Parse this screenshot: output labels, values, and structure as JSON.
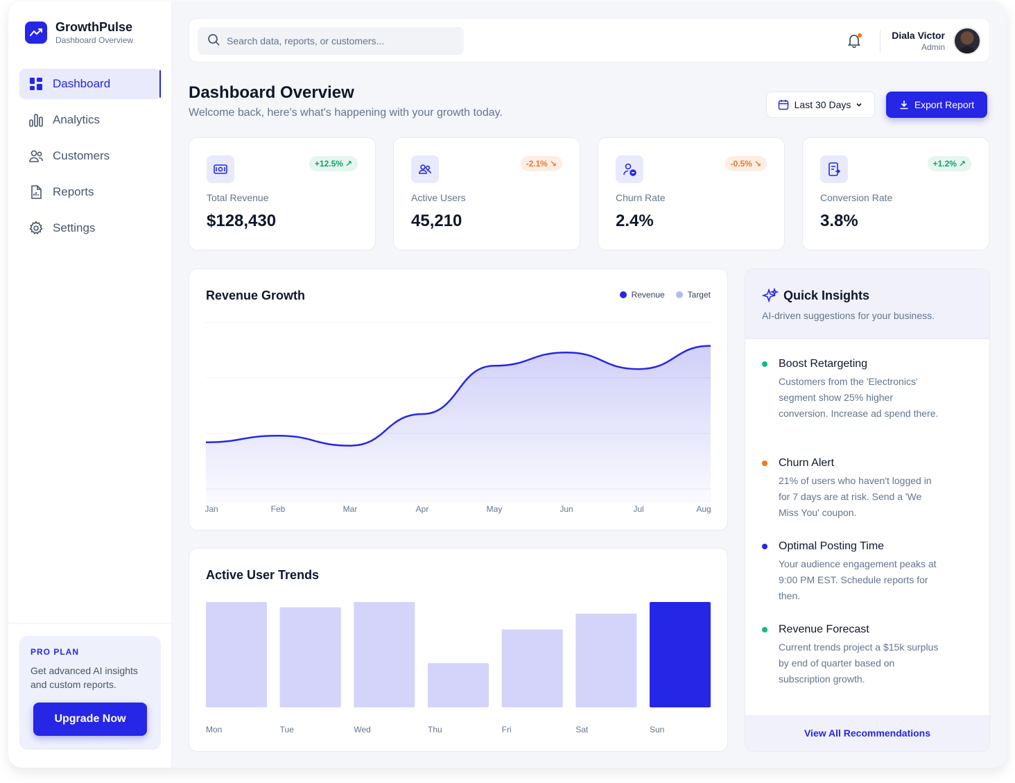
{
  "brand": {
    "name": "GrowthPulse",
    "subtitle": "Dashboard Overview"
  },
  "sidebar": {
    "items": [
      {
        "label": "Dashboard",
        "icon": "grid-icon",
        "active": true
      },
      {
        "label": "Analytics",
        "icon": "bar-chart-icon",
        "active": false
      },
      {
        "label": "Customers",
        "icon": "users-icon",
        "active": false
      },
      {
        "label": "Reports",
        "icon": "document-icon",
        "active": false
      },
      {
        "label": "Settings",
        "icon": "gear-icon",
        "active": false
      }
    ],
    "pro": {
      "title": "PRO PLAN",
      "description": "Get advanced AI insights and custom reports.",
      "button": "Upgrade Now"
    }
  },
  "topbar": {
    "search_placeholder": "Search data, reports, or customers...",
    "user_name": "Diala Victor",
    "user_role": "Admin"
  },
  "header": {
    "title": "Dashboard Overview",
    "subtitle": "Welcome back, here's what's happening with your growth today.",
    "date_range": "Last 30 Days",
    "export_label": "Export Report"
  },
  "stats": [
    {
      "label": "Total Revenue",
      "value": "$128,430",
      "change": "+12.5%",
      "trend": "up",
      "icon": "money-icon"
    },
    {
      "label": "Active Users",
      "value": "45,210",
      "change": "-2.1%",
      "trend": "down",
      "icon": "users-icon"
    },
    {
      "label": "Churn Rate",
      "value": "2.4%",
      "change": "-0.5%",
      "trend": "down",
      "icon": "user-minus-icon"
    },
    {
      "label": "Conversion Rate",
      "value": "3.8%",
      "change": "+1.2%",
      "trend": "up",
      "icon": "conversion-icon"
    }
  ],
  "colors": {
    "accent": "#2626e6",
    "accent_light": "#d4d4fa",
    "success": "#10a36b",
    "warning": "#f0752b"
  },
  "revenue_chart": {
    "title": "Revenue Growth",
    "legend": [
      "Revenue",
      "Target"
    ]
  },
  "users_chart": {
    "title": "Active User Trends"
  },
  "chart_data": [
    {
      "type": "area",
      "title": "Revenue Growth",
      "categories": [
        "Jan",
        "Feb",
        "Mar",
        "Apr",
        "May",
        "Jun",
        "Jul",
        "Aug"
      ],
      "series": [
        {
          "name": "Revenue",
          "values": [
            28,
            32,
            26,
            45,
            74,
            82,
            72,
            86
          ]
        }
      ],
      "ylim": [
        0,
        100
      ],
      "grid": true,
      "legend_position": "top-right"
    },
    {
      "type": "bar",
      "title": "Active User Trends",
      "categories": [
        "Mon",
        "Tue",
        "Wed",
        "Thu",
        "Fri",
        "Sat",
        "Sun"
      ],
      "values": [
        100,
        95,
        100,
        42,
        74,
        89,
        100
      ],
      "highlight": "Sun",
      "ylim": [
        0,
        100
      ]
    }
  ],
  "insights": {
    "title": "Quick Insights",
    "subtitle": "AI-driven suggestions for your business.",
    "items": [
      {
        "title": "Boost Retargeting",
        "text": "Customers from the 'Electronics' segment show 25% higher conversion. Increase ad spend there.",
        "color": "#10b981"
      },
      {
        "title": "Churn Alert",
        "text": "21% of users who haven't logged in for 7 days are at risk. Send a 'We Miss You' coupon.",
        "color": "#f97316"
      },
      {
        "title": "Optimal Posting Time",
        "text": "Your audience engagement peaks at 9:00 PM EST. Schedule reports for then.",
        "color": "#2626e6"
      },
      {
        "title": "Revenue Forecast",
        "text": "Current trends project a $15k surplus by end of quarter based on subscription growth.",
        "color": "#10b981"
      }
    ],
    "footer": "View All Recommendations"
  }
}
